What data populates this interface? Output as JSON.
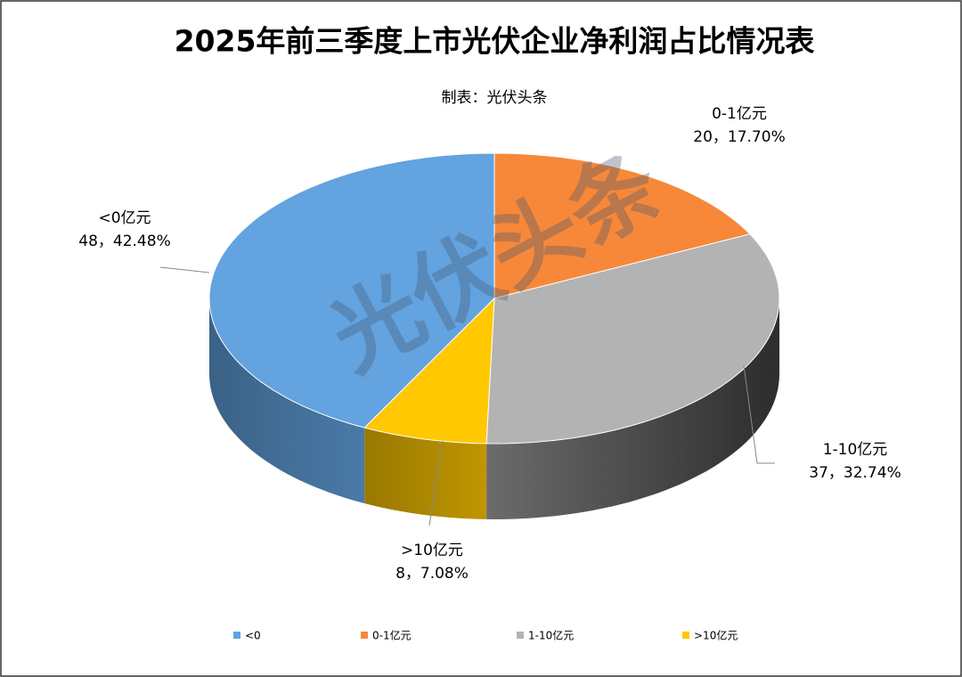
{
  "chart_data": {
    "type": "pie3d",
    "title": "2025年前三季度上市光伏企业净利润占比情况表",
    "subtitle": "制表：光伏头条",
    "watermark": "光伏头条",
    "categories": [
      "<0",
      "0-1亿元",
      "1-10亿元",
      ">10亿元"
    ],
    "label_names": [
      "<0亿元",
      "0-1亿元",
      "1-10亿元",
      ">10亿元"
    ],
    "values": [
      48,
      20,
      37,
      8
    ],
    "value_labels": [
      "48，42.48%",
      "20，17.70%",
      "37，32.74%",
      "8，7.08%"
    ],
    "colors": [
      "#62a3e0",
      "#f7883a",
      "#b3b3b3",
      "#ffc800"
    ],
    "legend": "bottom"
  }
}
